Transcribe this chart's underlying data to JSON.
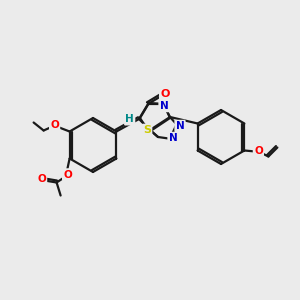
{
  "bg_color": "#ebebeb",
  "bond_color": "#1a1a1a",
  "atom_colors": {
    "O": "#ff0000",
    "N": "#0000cc",
    "S": "#cccc00",
    "H_label": "#008888",
    "C": "#1a1a1a"
  },
  "figsize": [
    3.0,
    3.0
  ],
  "dpi": 100,
  "lw": 1.6
}
